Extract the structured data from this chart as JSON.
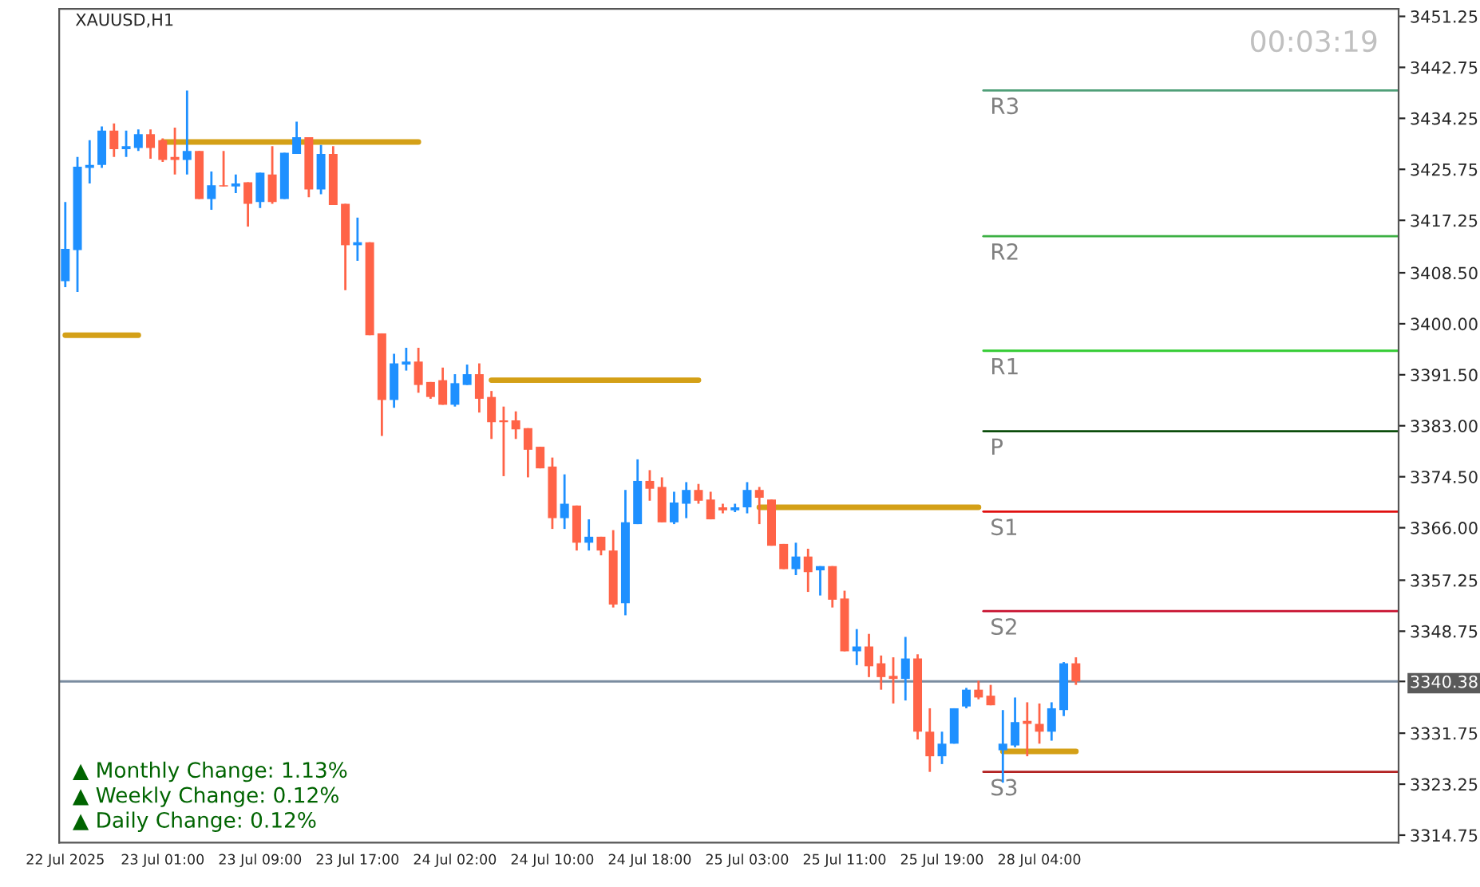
{
  "chart_data": {
    "type": "candlestick",
    "title": "XAUUSD,H1",
    "categories": [
      "22 Jul 2025",
      null,
      null,
      null,
      null,
      null,
      null,
      null,
      "23 Jul 01:00",
      null,
      null,
      null,
      null,
      null,
      null,
      null,
      "23 Jul 09:00",
      null,
      null,
      null,
      null,
      null,
      null,
      null,
      "23 Jul 17:00",
      null,
      null,
      null,
      null,
      null,
      null,
      null,
      "24 Jul 02:00",
      null,
      null,
      null,
      null,
      null,
      null,
      null,
      "24 Jul 10:00",
      null,
      null,
      null,
      null,
      null,
      null,
      null,
      "24 Jul 18:00",
      null,
      null,
      null,
      null,
      null,
      null,
      null,
      "25 Jul 03:00",
      null,
      null,
      null,
      null,
      null,
      null,
      null,
      "25 Jul 11:00",
      null,
      null,
      null,
      null,
      null,
      null,
      null,
      "25 Jul 19:00",
      null,
      null,
      null,
      null,
      null,
      null,
      null,
      "28 Jul 04:00",
      null,
      null,
      null,
      null,
      null,
      null,
      null,
      null,
      null,
      null,
      null,
      null,
      null,
      null,
      null,
      null,
      null,
      null,
      null,
      null,
      null,
      null,
      null,
      null,
      null,
      null,
      null,
      null,
      null
    ],
    "ohlc": [
      [
        3407.1,
        3420.3,
        3406.1,
        3412.5
      ],
      [
        3412.3,
        3427.8,
        3405.3,
        3426.2
      ],
      [
        3426.0,
        3430.6,
        3423.4,
        3426.5
      ],
      [
        3426.5,
        3432.9,
        3426.0,
        3432.2
      ],
      [
        3432.2,
        3433.4,
        3427.8,
        3429.1
      ],
      [
        3429.1,
        3432.2,
        3427.8,
        3429.6
      ],
      [
        3429.3,
        3432.4,
        3428.8,
        3431.6
      ],
      [
        3431.6,
        3432.4,
        3427.5,
        3429.3
      ],
      [
        3430.6,
        3430.9,
        3427.0,
        3427.3
      ],
      [
        3427.8,
        3432.7,
        3424.9,
        3427.3
      ],
      [
        3427.3,
        3438.9,
        3424.9,
        3428.8
      ],
      [
        3428.8,
        3428.8,
        3420.8,
        3420.8
      ],
      [
        3420.8,
        3425.4,
        3419.0,
        3423.1
      ],
      [
        3423.1,
        3428.8,
        3422.9,
        3422.9
      ],
      [
        3422.9,
        3424.9,
        3421.8,
        3423.4
      ],
      [
        3423.6,
        3423.6,
        3416.2,
        3420.0
      ],
      [
        3420.3,
        3425.2,
        3419.3,
        3425.2
      ],
      [
        3424.9,
        3429.6,
        3420.0,
        3420.3
      ],
      [
        3420.8,
        3428.5,
        3420.8,
        3428.5
      ],
      [
        3428.3,
        3433.7,
        3428.3,
        3431.1
      ],
      [
        3431.1,
        3431.1,
        3421.1,
        3422.4
      ],
      [
        3422.4,
        3429.8,
        3421.6,
        3428.3
      ],
      [
        3428.3,
        3429.6,
        3419.8,
        3419.8
      ],
      [
        3420.0,
        3420.0,
        3405.6,
        3413.1
      ],
      [
        3413.1,
        3417.7,
        3410.5,
        3413.6
      ],
      [
        3413.6,
        3413.6,
        3398.1,
        3398.1
      ],
      [
        3398.4,
        3398.4,
        3381.3,
        3387.3
      ],
      [
        3387.3,
        3395.0,
        3386.0,
        3393.4
      ],
      [
        3393.2,
        3396.0,
        3392.2,
        3393.7
      ],
      [
        3393.7,
        3396.0,
        3388.5,
        3389.8
      ],
      [
        3390.3,
        3390.3,
        3387.5,
        3387.8
      ],
      [
        3390.6,
        3392.7,
        3386.5,
        3386.5
      ],
      [
        3386.5,
        3391.6,
        3386.2,
        3390.1
      ],
      [
        3389.8,
        3393.2,
        3389.8,
        3391.6
      ],
      [
        3391.6,
        3393.4,
        3385.2,
        3387.5
      ],
      [
        3387.8,
        3388.8,
        3380.8,
        3383.6
      ],
      [
        3383.9,
        3386.2,
        3374.6,
        3383.6
      ],
      [
        3383.9,
        3385.4,
        3380.8,
        3382.4
      ],
      [
        3382.6,
        3382.6,
        3374.4,
        3379.0
      ],
      [
        3379.5,
        3379.5,
        3375.9,
        3375.9
      ],
      [
        3376.2,
        3377.7,
        3365.8,
        3367.6
      ],
      [
        3367.6,
        3374.9,
        3365.8,
        3370.0
      ],
      [
        3369.7,
        3369.7,
        3362.2,
        3363.5
      ],
      [
        3363.5,
        3367.4,
        3362.2,
        3364.5
      ],
      [
        3364.5,
        3364.5,
        3361.4,
        3362.2
      ],
      [
        3362.2,
        3365.6,
        3352.7,
        3353.2
      ],
      [
        3353.4,
        3372.3,
        3351.4,
        3366.9
      ],
      [
        3366.6,
        3377.4,
        3366.6,
        3373.8
      ],
      [
        3373.8,
        3375.6,
        3370.5,
        3372.5
      ],
      [
        3372.8,
        3374.4,
        3366.9,
        3366.9
      ],
      [
        3366.9,
        3372.0,
        3366.6,
        3370.2
      ],
      [
        3370.0,
        3373.6,
        3367.6,
        3372.3
      ],
      [
        3372.3,
        3373.3,
        3370.0,
        3370.5
      ],
      [
        3370.7,
        3372.0,
        3367.4,
        3367.4
      ],
      [
        3369.4,
        3370.0,
        3368.4,
        3368.9
      ],
      [
        3368.9,
        3370.0,
        3368.6,
        3369.4
      ],
      [
        3369.4,
        3373.6,
        3368.4,
        3372.3
      ],
      [
        3372.3,
        3372.8,
        3366.6,
        3371.0
      ],
      [
        3370.7,
        3370.7,
        3363.0,
        3363.0
      ],
      [
        3363.3,
        3363.3,
        3359.1,
        3359.1
      ],
      [
        3359.1,
        3363.5,
        3358.1,
        3361.2
      ],
      [
        3361.2,
        3362.5,
        3355.3,
        3358.6
      ],
      [
        3358.9,
        3359.6,
        3354.7,
        3359.6
      ],
      [
        3359.6,
        3359.6,
        3352.7,
        3354.0
      ],
      [
        3354.2,
        3355.5,
        3345.4,
        3345.4
      ],
      [
        3345.4,
        3349.1,
        3343.1,
        3346.2
      ],
      [
        3346.2,
        3348.3,
        3341.1,
        3342.9
      ],
      [
        3343.4,
        3344.7,
        3339.0,
        3341.1
      ],
      [
        3341.3,
        3344.4,
        3336.7,
        3340.8
      ],
      [
        3340.8,
        3347.8,
        3337.2,
        3344.2
      ],
      [
        3344.2,
        3344.9,
        3330.7,
        3332.0
      ],
      [
        3332.0,
        3335.9,
        3325.3,
        3327.9
      ],
      [
        3327.9,
        3332.0,
        3326.6,
        3330.0
      ],
      [
        3330.0,
        3335.9,
        3330.0,
        3335.9
      ],
      [
        3336.2,
        3339.3,
        3335.9,
        3339.0
      ],
      [
        3339.0,
        3340.5,
        3337.4,
        3337.7
      ],
      [
        3338.0,
        3339.8,
        3336.4,
        3336.4
      ],
      [
        3328.9,
        3335.6,
        3323.5,
        3330.0
      ],
      [
        3329.7,
        3337.7,
        3329.4,
        3333.6
      ],
      [
        3333.8,
        3336.9,
        3327.9,
        3333.3
      ],
      [
        3333.3,
        3336.7,
        3330.0,
        3332.0
      ],
      [
        3332.0,
        3336.9,
        3330.5,
        3335.9
      ],
      [
        3335.6,
        3343.6,
        3334.6,
        3343.4
      ],
      [
        3343.4,
        3344.4,
        3339.8,
        3340.38
      ],
      null,
      null,
      null,
      null,
      null,
      null,
      null,
      null,
      null,
      null,
      null,
      null,
      null,
      null,
      null,
      null,
      null,
      null,
      null,
      null,
      null,
      null,
      null,
      null,
      null,
      null
    ],
    "colors": [
      "#1e90ff",
      "#1e90ff",
      "#1e90ff",
      "#1e90ff",
      "#ff6347",
      "#1e90ff",
      "#1e90ff",
      "#ff6347",
      "#ff6347",
      "#ff6347",
      "#1e90ff",
      "#ff6347",
      "#1e90ff",
      "#ff6347",
      "#1e90ff",
      "#ff6347",
      "#1e90ff",
      "#ff6347",
      "#1e90ff",
      "#1e90ff",
      "#ff6347",
      "#1e90ff",
      "#ff6347",
      "#ff6347",
      "#1e90ff",
      "#ff6347",
      "#ff6347",
      "#1e90ff",
      "#1e90ff",
      "#ff6347",
      "#ff6347",
      "#ff6347",
      "#1e90ff",
      "#1e90ff",
      "#ff6347",
      "#ff6347",
      "#ff6347",
      "#ff6347",
      "#ff6347",
      "#ff6347",
      "#ff6347",
      "#1e90ff",
      "#ff6347",
      "#1e90ff",
      "#ff6347",
      "#ff6347",
      "#1e90ff",
      "#1e90ff",
      "#ff6347",
      "#ff6347",
      "#1e90ff",
      "#1e90ff",
      "#ff6347",
      "#ff6347",
      "#ff6347",
      "#1e90ff",
      "#1e90ff",
      "#ff6347",
      "#ff6347",
      "#ff6347",
      "#1e90ff",
      "#ff6347",
      "#1e90ff",
      "#ff6347",
      "#ff6347",
      "#1e90ff",
      "#ff6347",
      "#ff6347",
      "#ff6347",
      "#1e90ff",
      "#ff6347",
      "#ff6347",
      "#1e90ff",
      "#1e90ff",
      "#1e90ff",
      "#ff6347",
      "#ff6347",
      "#1e90ff",
      "#1e90ff",
      "#ff6347",
      "#ff6347",
      "#1e90ff",
      "#1e90ff",
      "#ff6347",
      null,
      null,
      null,
      null,
      null,
      null,
      null,
      null,
      null,
      null,
      null,
      null,
      null,
      null,
      null,
      null,
      null,
      null,
      null,
      null,
      null,
      null,
      null,
      null,
      null,
      null
    ],
    "series": [
      {
        "type": "line",
        "color": "#d4a017",
        "values": [
          3398.1,
          3398.1,
          3398.1,
          3398.1,
          3398.1,
          3398.1,
          3398.1,
          null,
          3430.3,
          3430.3,
          3430.3,
          3430.3,
          3430.3,
          3430.3,
          3430.3,
          3430.3,
          3430.3,
          3430.3,
          3430.3,
          3430.3,
          3430.3,
          3430.3,
          3430.3,
          3430.3,
          3430.3,
          3430.3,
          3430.3,
          3430.3,
          3430.3,
          3430.3,
          null,
          null,
          null,
          null,
          null,
          3390.6,
          3390.6,
          3390.6,
          3390.6,
          3390.6,
          3390.6,
          3390.6,
          3390.6,
          3390.6,
          3390.6,
          3390.6,
          3390.6,
          3390.6,
          3390.6,
          3390.6,
          3390.6,
          3390.6,
          3390.6,
          null,
          null,
          null,
          null,
          3369.4,
          3369.4,
          3369.4,
          3369.4,
          3369.4,
          3369.4,
          3369.4,
          3369.4,
          3369.4,
          3369.4,
          3369.4,
          3369.4,
          3369.4,
          3369.4,
          3369.4,
          3369.4,
          3369.4,
          3369.4,
          3369.4,
          null,
          3328.7,
          3328.7,
          3328.7,
          3328.7,
          3328.7,
          3328.7,
          3328.7,
          null,
          null,
          null,
          null,
          null,
          null,
          null,
          null,
          null,
          null,
          null,
          null,
          null,
          null,
          null,
          null,
          null,
          null,
          null,
          null,
          null,
          null,
          null,
          null,
          null,
          null
        ]
      }
    ],
    "ylim": [
      3313.5,
      3452.5
    ],
    "yticks": [
      3451.25,
      3442.75,
      3434.25,
      3425.75,
      3417.25,
      {
        "value": 3408.5,
        "label": "3408.50"
      },
      {
        "value": 3400,
        "label": "3400.00"
      },
      {
        "value": 3391.5,
        "label": "3391.50"
      },
      {
        "value": 3383,
        "label": "3383.00"
      },
      {
        "value": 3374.5,
        "label": "3374.50"
      },
      {
        "value": 3366,
        "label": "3366.00"
      },
      3357.25,
      3348.75,
      3340.38,
      3331.75,
      3323.25,
      3314.75
    ],
    "ref_lines": [
      {
        "axis": "y",
        "value": 3438.9,
        "label": "R3",
        "color": "#4f9f78"
      },
      {
        "axis": "y",
        "value": 3414.6,
        "label": "R2",
        "color": "#3cb043"
      },
      {
        "axis": "y",
        "value": 3395.5,
        "label": "R1",
        "color": "#33cc33"
      },
      {
        "axis": "y",
        "value": 3382.1,
        "label": "P",
        "color": "#0b4d0b"
      },
      {
        "axis": "y",
        "value": 3368.7,
        "label": "S1",
        "color": "#e01010"
      },
      {
        "axis": "y",
        "value": 3352.1,
        "label": "S2",
        "color": "#c8102e"
      },
      {
        "axis": "y",
        "value": 3325.3,
        "label": "S3",
        "color": "#b22222"
      },
      {
        "axis": "y",
        "value": 3340.38,
        "color": "#7a8ca0"
      }
    ],
    "annotations": [
      "00:03:19",
      "▲ Monthly Change: 1.13%",
      "▲ Weekly Change: 0.12%",
      "▲ Daily Change: 0.12%"
    ],
    "grid": false,
    "legend": false
  }
}
